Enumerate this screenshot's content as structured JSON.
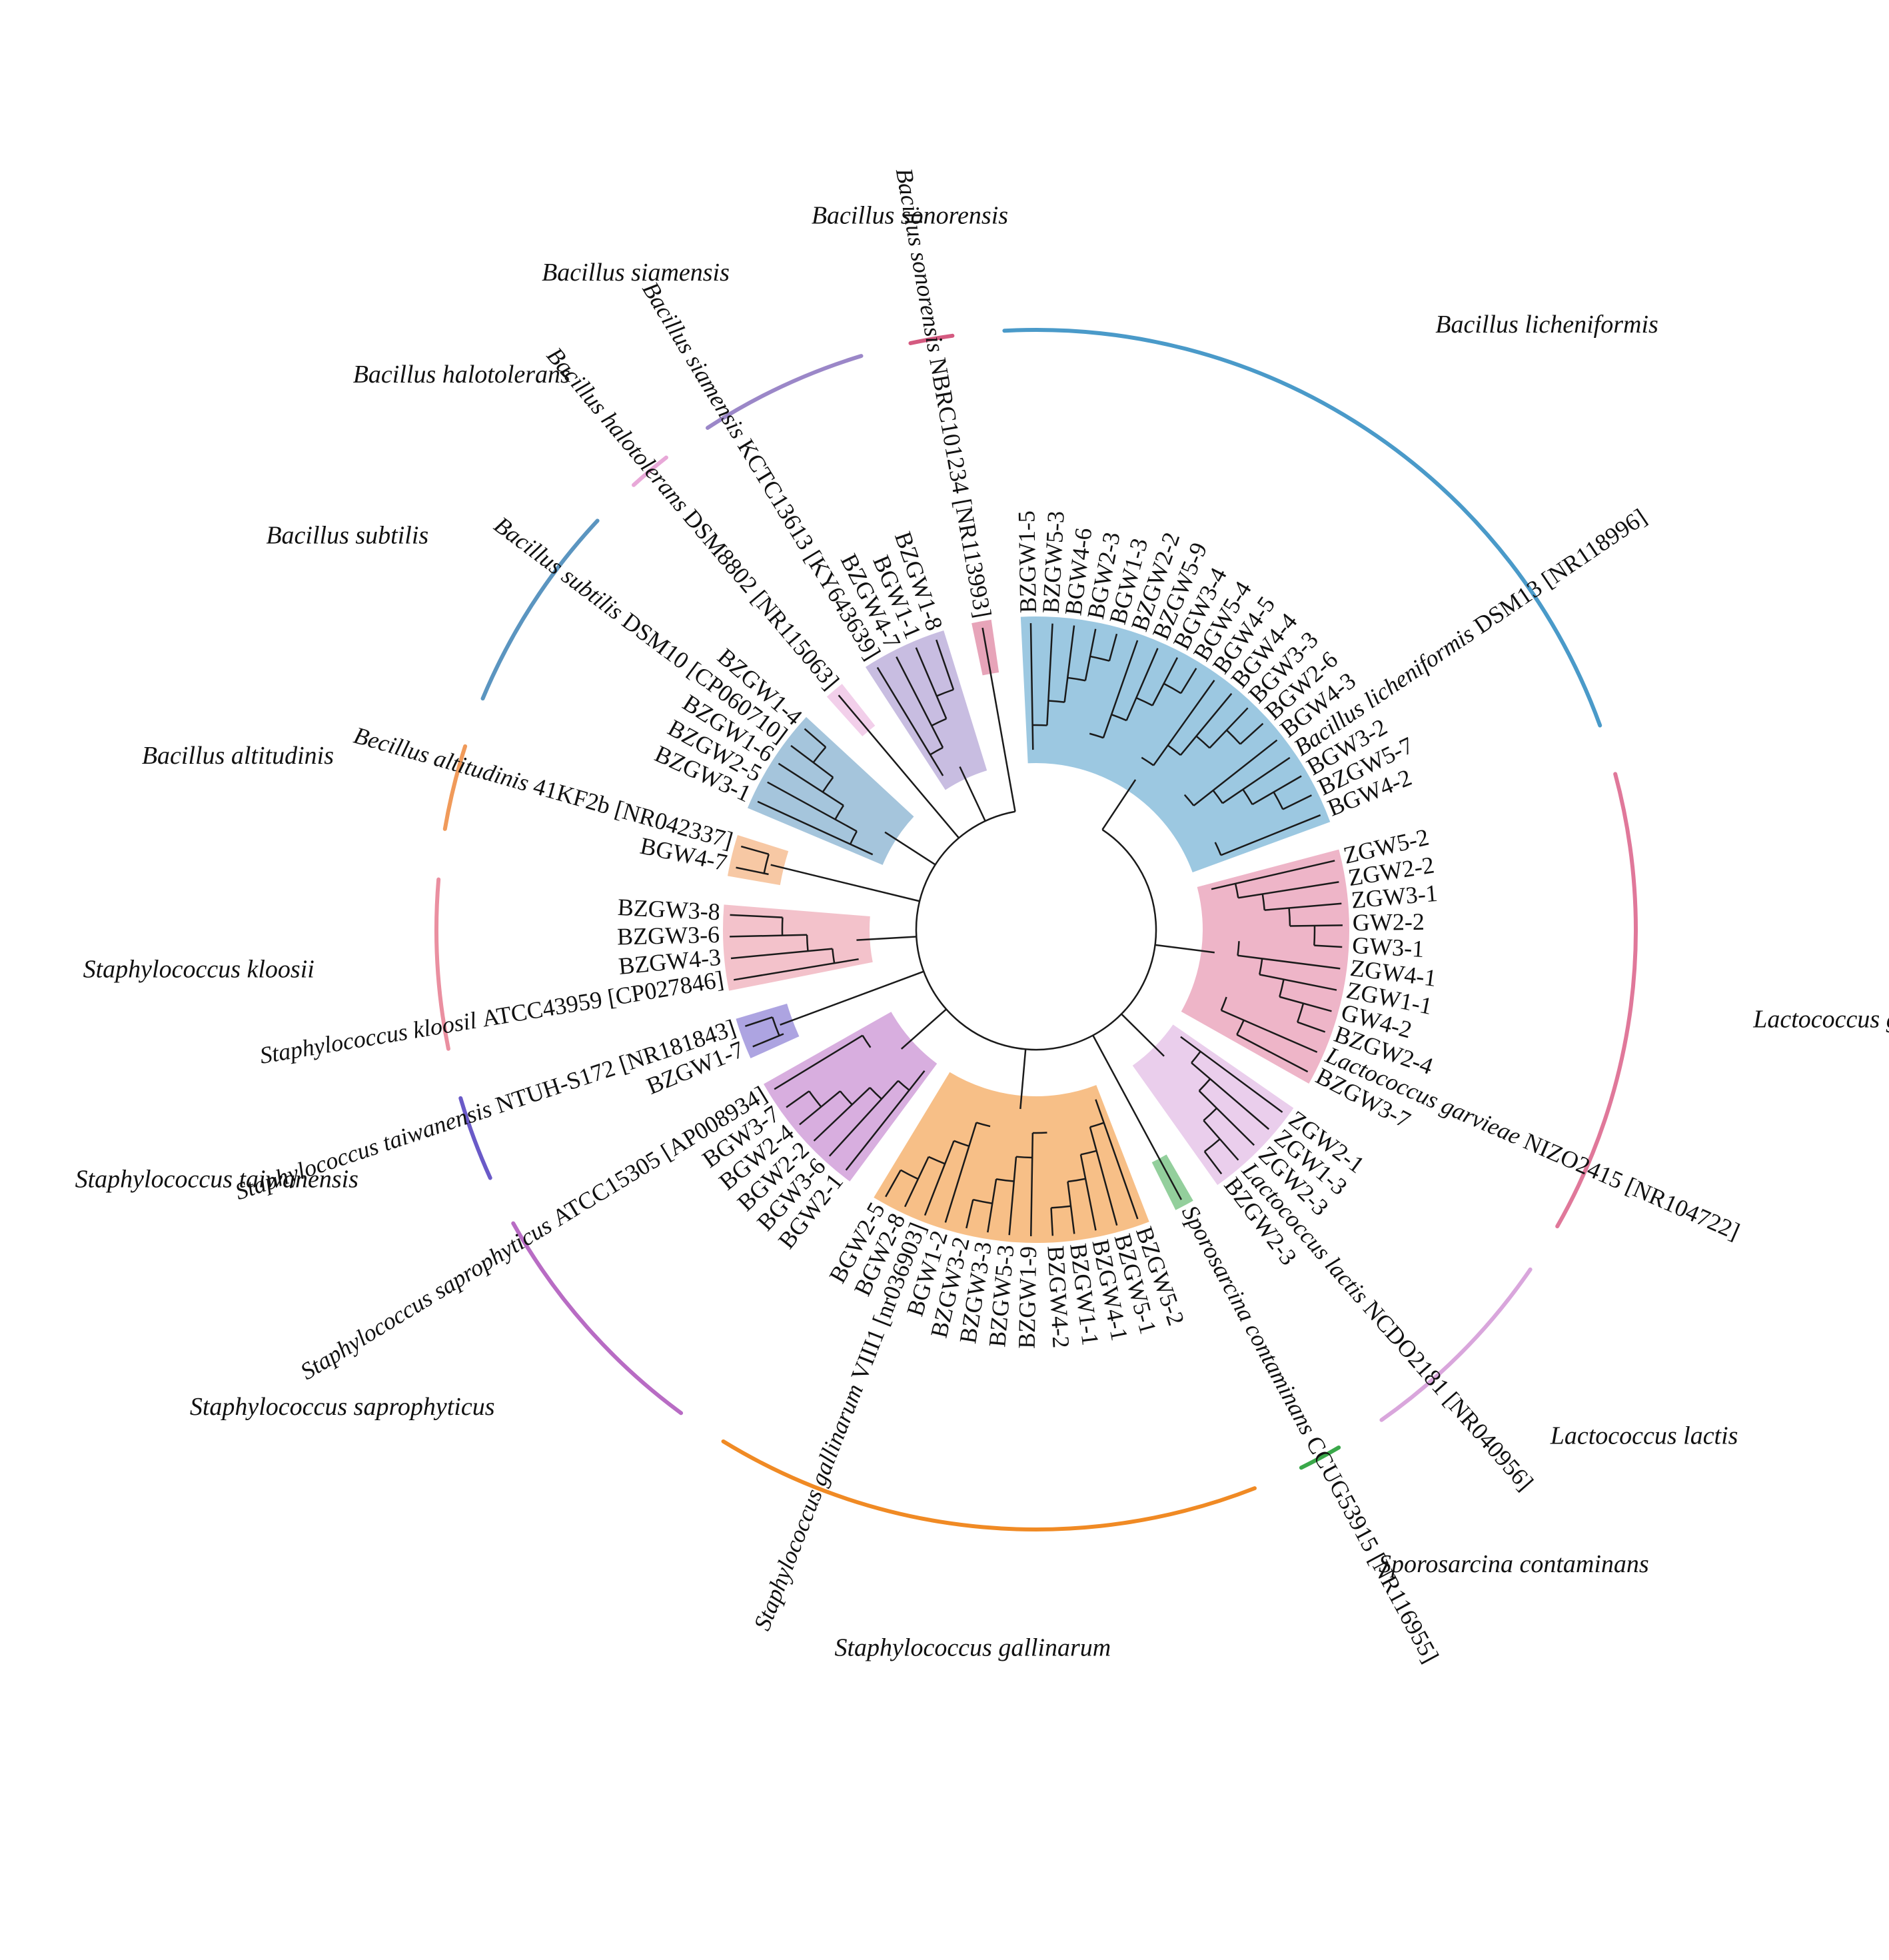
{
  "tree": {
    "groups": [
      {
        "id": "licheniformis",
        "label": "Bacillus licheniformis",
        "color": "#4a9ac9",
        "leaves": [
          {
            "name": "BZGW1-5"
          },
          {
            "name": "BZGW5-3"
          },
          {
            "name": "BGW4-6"
          },
          {
            "name": "BGW2-3"
          },
          {
            "name": "BGW1-3"
          },
          {
            "name": "BZGW2-2"
          },
          {
            "name": "BZGW5-9"
          },
          {
            "name": "BGW3-4"
          },
          {
            "name": "BGW5-4"
          },
          {
            "name": "BGW4-5"
          },
          {
            "name": "BGW4-4"
          },
          {
            "name": "BGW3-3"
          },
          {
            "name": "BGW2-6"
          },
          {
            "name": "BGW4-3"
          },
          {
            "species": "Bacillus licheniformis",
            "strain": "DSM13 [NR118996]"
          },
          {
            "name": "BGW3-2"
          },
          {
            "name": "BZGW5-7"
          },
          {
            "name": "BGW4-2"
          }
        ]
      },
      {
        "id": "garvieae",
        "label": "Lactococcus garvieae",
        "color": "#e0789a",
        "leaves": [
          {
            "name": "ZGW5-2"
          },
          {
            "name": "ZGW2-2"
          },
          {
            "name": "ZGW3-1"
          },
          {
            "name": "GW2-2"
          },
          {
            "name": "GW3-1"
          },
          {
            "name": "ZGW4-1"
          },
          {
            "name": "ZGW1-1"
          },
          {
            "name": "GW4-2"
          },
          {
            "name": "BZGW2-4"
          },
          {
            "species": "Lactococcus garvieae",
            "strain": "NIZO2415 [NR104722]"
          },
          {
            "name": "BZGW3-7"
          }
        ]
      },
      {
        "id": "lactis",
        "label": "Lactococcus lactis",
        "color": "#d9a6dc",
        "leaves": [
          {
            "name": "ZGW2-1"
          },
          {
            "name": "ZGW1-3"
          },
          {
            "name": "ZGW2-3"
          },
          {
            "species": "Lactococcus lactis",
            "strain": "NCDO2181 [NR040956]"
          },
          {
            "name": "BZGW2-3"
          }
        ]
      },
      {
        "id": "sporosarcina",
        "label": "Sporosarcina contaminans",
        "color": "#3aa84a",
        "leaves": [
          {
            "species": "Sporosarcina contaminans",
            "strain": "CCUG53915 [NR116955]"
          }
        ]
      },
      {
        "id": "gallinarum",
        "label": "Staphylococcus gallinarum",
        "color": "#f08a24",
        "leaves": [
          {
            "name": "BZGW5-2"
          },
          {
            "name": "BZGW5-1"
          },
          {
            "name": "BZGW4-1"
          },
          {
            "name": "BZGW1-1"
          },
          {
            "name": "BZGW4-2"
          },
          {
            "name": "BZGW1-9"
          },
          {
            "name": "BZGW5-3"
          },
          {
            "name": "BZGW3-3"
          },
          {
            "name": "BZGW3-2"
          },
          {
            "name": "BGW1-2"
          },
          {
            "species": "Staphylococcus gallinarum",
            "strain": "VIII1 [nr036903]"
          },
          {
            "name": "BGW2-8"
          },
          {
            "name": "BGW2-5"
          }
        ]
      },
      {
        "id": "saprophyticus",
        "label": "Staphylococcus saprophyticus",
        "color": "#b86cc4",
        "leaves": [
          {
            "name": "BGW2-1"
          },
          {
            "name": "BGW3-6"
          },
          {
            "name": "BGW2-2"
          },
          {
            "name": "BGW2-4"
          },
          {
            "name": "BGW3-7"
          },
          {
            "species": "Staphylococcus saprophyticus",
            "strain": "ATCC15305 [AP008934]"
          }
        ]
      },
      {
        "id": "taiwanensis",
        "label": "Staphylococcus taiwanensis",
        "color": "#6a5ac8",
        "leaves": [
          {
            "name": "BZGW1-7"
          },
          {
            "species": "Staphylococcus taiwanensis",
            "strain": "NTUH-S172 [NR181843]"
          }
        ]
      },
      {
        "id": "kloosii",
        "label": "Staphylococcus kloosii",
        "color": "#ea8fa0",
        "leaves": [
          {
            "species": "Staphylococcus kloosil",
            "strain": "ATCC43959 [CP027846]"
          },
          {
            "name": "BZGW4-3"
          },
          {
            "name": "BZGW3-6"
          },
          {
            "name": "BZGW3-8"
          }
        ]
      },
      {
        "id": "altitudinis",
        "label": "Bacillus altitudinis",
        "color": "#f09a5a",
        "leaves": [
          {
            "name": "BGW4-7"
          },
          {
            "species": "Becillus altitudinis",
            "strain": "41KF2b [NR042337]"
          }
        ]
      },
      {
        "id": "subtilis",
        "label": "Bacillus subtilis",
        "color": "#5b95c0",
        "leaves": [
          {
            "name": "BZGW3-1"
          },
          {
            "name": "BZGW2-5"
          },
          {
            "name": "BZGW1-6"
          },
          {
            "species": "Bacillus subtilis",
            "strain": "DSM10 [CP060710]"
          },
          {
            "name": "BZGW1-4"
          }
        ]
      },
      {
        "id": "halotolerans",
        "label": "Bacillus halotolerans",
        "color": "#e8a8d8",
        "leaves": [
          {
            "species": "Bacillus halotolerans",
            "strain": "DSM8802 [NR115063]"
          }
        ]
      },
      {
        "id": "siamensis",
        "label": "Bacillus siamensis",
        "color": "#9b87c8",
        "leaves": [
          {
            "species": "Bacillus siamensis",
            "strain": "KCTC13613 [KY643639]"
          },
          {
            "name": "BZGW4-7"
          },
          {
            "name": "BGW1-1"
          },
          {
            "name": "BZGW1-8"
          }
        ]
      },
      {
        "id": "sonorensis",
        "label": "Bacillus sonorensis",
        "color": "#d45a80",
        "leaves": [
          {
            "species": "Bacillus sonorensis",
            "strain": "NBRC101234 [NR113993]"
          }
        ]
      }
    ]
  }
}
